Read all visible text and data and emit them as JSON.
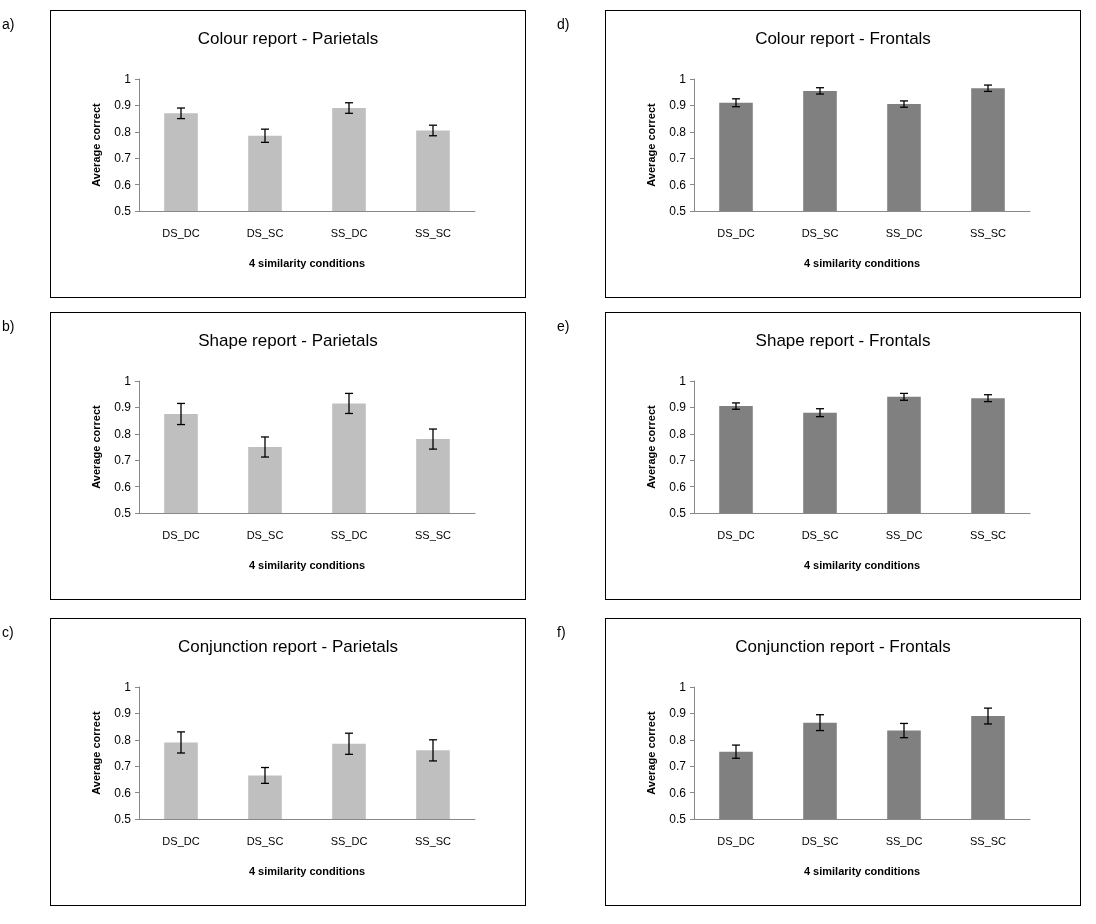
{
  "chart_data": [
    {
      "type": "bar",
      "title": "Colour report - Parietals",
      "xlabel": "4 similarity conditions",
      "ylabel": "Average correct",
      "annotations": [
        "a)"
      ],
      "categories": [
        "DS_DC",
        "DS_SC",
        "SS_DC",
        "SS_SC"
      ],
      "values": [
        0.87,
        0.785,
        0.89,
        0.805
      ],
      "errors": [
        0.02,
        0.025,
        0.02,
        0.02
      ],
      "color": "#bfbfbf",
      "ylim": [
        0.5,
        1
      ],
      "yticks": [
        0.5,
        0.6,
        0.7,
        0.8,
        0.9,
        1
      ],
      "grid": false
    },
    {
      "type": "bar",
      "title": "Colour report - Frontals",
      "xlabel": "4 similarity conditions",
      "ylabel": "Average correct",
      "annotations": [
        "d)"
      ],
      "categories": [
        "DS_DC",
        "DS_SC",
        "SS_DC",
        "SS_SC"
      ],
      "values": [
        0.91,
        0.955,
        0.905,
        0.965
      ],
      "errors": [
        0.015,
        0.012,
        0.012,
        0.012
      ],
      "color": "#808080",
      "ylim": [
        0.5,
        1
      ],
      "yticks": [
        0.5,
        0.6,
        0.7,
        0.8,
        0.9,
        1
      ],
      "grid": false
    },
    {
      "type": "bar",
      "title": "Shape report - Parietals",
      "xlabel": "4 similarity conditions",
      "ylabel": "Average correct",
      "annotations": [
        "b)"
      ],
      "categories": [
        "DS_DC",
        "DS_SC",
        "SS_DC",
        "SS_SC"
      ],
      "values": [
        0.875,
        0.75,
        0.915,
        0.78
      ],
      "errors": [
        0.04,
        0.038,
        0.038,
        0.038
      ],
      "color": "#bfbfbf",
      "ylim": [
        0.5,
        1
      ],
      "yticks": [
        0.5,
        0.6,
        0.7,
        0.8,
        0.9,
        1
      ],
      "grid": false
    },
    {
      "type": "bar",
      "title": "Shape report - Frontals",
      "xlabel": "4 similarity conditions",
      "ylabel": "Average correct",
      "annotations": [
        "e)"
      ],
      "categories": [
        "DS_DC",
        "DS_SC",
        "SS_DC",
        "SS_SC"
      ],
      "values": [
        0.905,
        0.88,
        0.94,
        0.935
      ],
      "errors": [
        0.012,
        0.015,
        0.013,
        0.013
      ],
      "color": "#808080",
      "ylim": [
        0.5,
        1
      ],
      "yticks": [
        0.5,
        0.6,
        0.7,
        0.8,
        0.9,
        1
      ],
      "grid": false
    },
    {
      "type": "bar",
      "title": "Conjunction report - Parietals",
      "xlabel": "4 similarity conditions",
      "ylabel": "Average correct",
      "annotations": [
        "c)"
      ],
      "categories": [
        "DS_DC",
        "DS_SC",
        "SS_DC",
        "SS_SC"
      ],
      "values": [
        0.79,
        0.665,
        0.785,
        0.76
      ],
      "errors": [
        0.04,
        0.03,
        0.04,
        0.04
      ],
      "color": "#bfbfbf",
      "ylim": [
        0.5,
        1
      ],
      "yticks": [
        0.5,
        0.6,
        0.7,
        0.8,
        0.9,
        1
      ],
      "grid": false
    },
    {
      "type": "bar",
      "title": "Conjunction report - Frontals",
      "xlabel": "4 similarity conditions",
      "ylabel": "Average correct",
      "annotations": [
        "f)"
      ],
      "categories": [
        "DS_DC",
        "DS_SC",
        "SS_DC",
        "SS_SC"
      ],
      "values": [
        0.755,
        0.865,
        0.835,
        0.89
      ],
      "errors": [
        0.025,
        0.03,
        0.027,
        0.03
      ],
      "color": "#808080",
      "ylim": [
        0.5,
        1
      ],
      "yticks": [
        0.5,
        0.6,
        0.7,
        0.8,
        0.9,
        1
      ],
      "grid": false
    }
  ]
}
